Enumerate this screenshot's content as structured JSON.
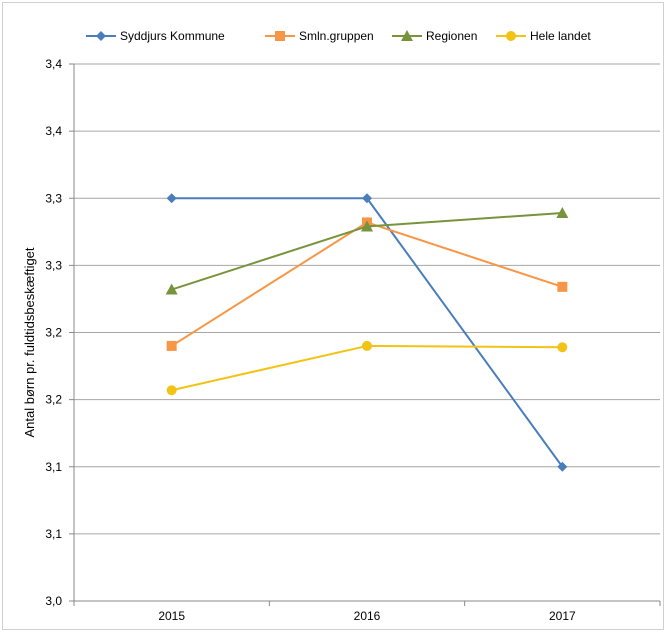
{
  "chart_data": {
    "type": "line",
    "title": "",
    "xlabel": "",
    "ylabel": "Antal børn pr. fuldtidsbeskæftiget",
    "categories": [
      "2015",
      "2016",
      "2017"
    ],
    "ylim": [
      3.0,
      3.4
    ],
    "y_ticks": [
      3.0,
      3.05,
      3.1,
      3.15,
      3.2,
      3.25,
      3.3,
      3.35,
      3.4
    ],
    "y_tick_labels": [
      "3,0",
      "3,1",
      "3,1",
      "3,2",
      "3,2",
      "3,3",
      "3,3",
      "3,4",
      "3,4"
    ],
    "grid": "horizontal",
    "legend_position": "top",
    "series": [
      {
        "name": "Syddjurs Kommune",
        "values": [
          3.3,
          3.3,
          3.1
        ],
        "color": "#4a7ebb",
        "marker": "diamond"
      },
      {
        "name": "Smln.gruppen",
        "values": [
          3.19,
          3.282,
          3.234
        ],
        "color": "#f79646",
        "marker": "square"
      },
      {
        "name": "Regionen",
        "values": [
          3.232,
          3.279,
          3.289
        ],
        "color": "#77933c",
        "marker": "triangle"
      },
      {
        "name": "Hele landet",
        "values": [
          3.157,
          3.19,
          3.189
        ],
        "color": "#f2c314",
        "marker": "circle"
      }
    ]
  }
}
